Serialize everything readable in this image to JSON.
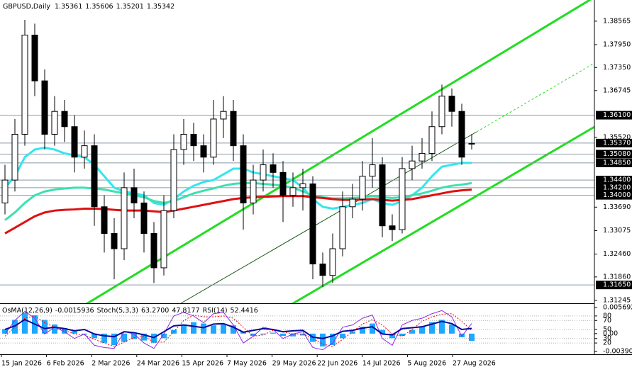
{
  "chart_data": [
    {
      "type": "candlestick",
      "symbol": "GBPUSD,Daily",
      "open": [
        1.338,
        1.344,
        1.356,
        1.382,
        1.37,
        1.356,
        1.362,
        1.358,
        1.35,
        1.353,
        1.337,
        1.33,
        1.326,
        1.342,
        1.338,
        1.33,
        1.321,
        1.336,
        1.352,
        1.356,
        1.353,
        1.35,
        1.36,
        1.362,
        1.353,
        1.338,
        1.344,
        1.348,
        1.346,
        1.34,
        1.342,
        1.343,
        1.322,
        1.319,
        1.326,
        1.337,
        1.339,
        1.345,
        1.348,
        1.332,
        1.331,
        1.347,
        1.349,
        1.351,
        1.358,
        1.366,
        1.362,
        1.35361
      ],
      "high": [
        1.348,
        1.36,
        1.386,
        1.385,
        1.373,
        1.366,
        1.365,
        1.361,
        1.357,
        1.356,
        1.34,
        1.334,
        1.346,
        1.347,
        1.341,
        1.333,
        1.34,
        1.356,
        1.36,
        1.359,
        1.356,
        1.365,
        1.366,
        1.365,
        1.356,
        1.348,
        1.352,
        1.351,
        1.349,
        1.346,
        1.347,
        1.345,
        1.325,
        1.33,
        1.341,
        1.343,
        1.349,
        1.355,
        1.35,
        1.335,
        1.35,
        1.353,
        1.355,
        1.362,
        1.369,
        1.368,
        1.364,
        1.35606
      ],
      "low": [
        1.335,
        1.341,
        1.353,
        1.366,
        1.352,
        1.353,
        1.354,
        1.346,
        1.347,
        1.332,
        1.325,
        1.318,
        1.323,
        1.334,
        1.325,
        1.317,
        1.319,
        1.334,
        1.348,
        1.349,
        1.346,
        1.348,
        1.355,
        1.349,
        1.331,
        1.335,
        1.341,
        1.342,
        1.333,
        1.337,
        1.336,
        1.318,
        1.316,
        1.317,
        1.324,
        1.334,
        1.336,
        1.342,
        1.329,
        1.328,
        1.33,
        1.344,
        1.347,
        1.349,
        1.356,
        1.358,
        1.348,
        1.35201
      ],
      "close": [
        1.344,
        1.356,
        1.382,
        1.37,
        1.356,
        1.362,
        1.358,
        1.35,
        1.353,
        1.337,
        1.33,
        1.326,
        1.342,
        1.338,
        1.33,
        1.321,
        1.336,
        1.352,
        1.356,
        1.353,
        1.35,
        1.36,
        1.362,
        1.353,
        1.338,
        1.344,
        1.348,
        1.346,
        1.34,
        1.342,
        1.343,
        1.322,
        1.319,
        1.326,
        1.337,
        1.339,
        1.345,
        1.348,
        1.332,
        1.331,
        1.347,
        1.349,
        1.351,
        1.358,
        1.366,
        1.362,
        1.35,
        1.35342
      ],
      "up_color": "#ffffff",
      "down_color": "#000000",
      "lines": [
        {
          "color": "#33e6ee",
          "values": [
            1.342,
            1.345,
            1.35,
            1.352,
            1.3525,
            1.352,
            1.351,
            1.3505,
            1.35,
            1.348,
            1.345,
            1.342,
            1.341,
            1.3405,
            1.34,
            1.338,
            1.3375,
            1.339,
            1.341,
            1.3425,
            1.3435,
            1.344,
            1.3455,
            1.347,
            1.347,
            1.346,
            1.3455,
            1.345,
            1.3445,
            1.344,
            1.342,
            1.339,
            1.337,
            1.3365,
            1.337,
            1.3375,
            1.338,
            1.339,
            1.338,
            1.3375,
            1.3385,
            1.34,
            1.342,
            1.345,
            1.3475,
            1.348,
            1.3485,
            1.3485
          ]
        },
        {
          "color": "#3ee0b0",
          "values": [
            1.3335,
            1.3355,
            1.338,
            1.34,
            1.341,
            1.3415,
            1.3418,
            1.342,
            1.342,
            1.3418,
            1.3415,
            1.341,
            1.3405,
            1.34,
            1.3395,
            1.3385,
            1.338,
            1.3385,
            1.3395,
            1.3405,
            1.3412,
            1.3418,
            1.3425,
            1.343,
            1.3432,
            1.3432,
            1.343,
            1.3428,
            1.3425,
            1.342,
            1.341,
            1.34,
            1.3395,
            1.3392,
            1.3392,
            1.3393,
            1.3395,
            1.3398,
            1.3395,
            1.3393,
            1.3395,
            1.34,
            1.3405,
            1.3412,
            1.342,
            1.3425,
            1.3428,
            1.3432
          ]
        },
        {
          "color": "#e01010",
          "values": [
            1.33,
            1.3315,
            1.333,
            1.3345,
            1.3355,
            1.336,
            1.3362,
            1.3363,
            1.3365,
            1.3365,
            1.3364,
            1.3362,
            1.336,
            1.336,
            1.336,
            1.3358,
            1.3356,
            1.336,
            1.3365,
            1.337,
            1.3375,
            1.338,
            1.3385,
            1.339,
            1.3393,
            1.3395,
            1.3396,
            1.3397,
            1.3398,
            1.3398,
            1.3398,
            1.3395,
            1.3393,
            1.339,
            1.3388,
            1.3388,
            1.3389,
            1.339,
            1.3388,
            1.3386,
            1.3388,
            1.339,
            1.3395,
            1.34,
            1.3405,
            1.341,
            1.3413,
            1.3415
          ]
        }
      ],
      "ylim": [
        1.3117,
        1.3912
      ],
      "yticks": [
        {
          "value": 1.38565,
          "label": "1.38565"
        },
        {
          "value": 1.3795,
          "label": "1.37950"
        },
        {
          "value": 1.3735,
          "label": "1.37350"
        },
        {
          "value": 1.36745,
          "label": "1.36745"
        },
        {
          "value": 1.3552,
          "label": "1.35520"
        },
        {
          "value": 1.3369,
          "label": "1.33690"
        },
        {
          "value": 1.33075,
          "label": "1.33075"
        },
        {
          "value": 1.3246,
          "label": "1.32460"
        },
        {
          "value": 1.3186,
          "label": "1.31860"
        },
        {
          "value": 1.31245,
          "label": "1.31245"
        }
      ],
      "levels": [
        {
          "value": 1.361,
          "label": "1.36100"
        },
        {
          "value": 1.3537,
          "label": "1.35370"
        },
        {
          "value": 1.3508,
          "label": "1.35080"
        },
        {
          "value": 1.3485,
          "label": "1.34850"
        },
        {
          "value": 1.344,
          "label": "1.34400"
        },
        {
          "value": 1.342,
          "label": "1.34200"
        },
        {
          "value": 1.34,
          "label": "1.34000"
        },
        {
          "value": 1.3165,
          "label": "1.31650"
        }
      ],
      "xtick_labels": [
        "15 Jan 2026",
        "6 Feb 2026",
        "2 Mar 2026",
        "24 Mar 2026",
        "15 Apr 2026",
        "7 May 2026",
        "29 May 2026",
        "22 Jun 2026",
        "14 Jul 2026",
        "5 Aug 2026",
        "27 Aug 2026"
      ]
    },
    {
      "type": "oscillator",
      "osma": {
        "name": "OsMA(12,26,9)",
        "color": "#1ea8ff",
        "values": [
          0.001,
          0.003,
          0.0045,
          0.004,
          0.003,
          0.002,
          0.0012,
          0.0005,
          -0.0002,
          -0.001,
          -0.002,
          -0.0025,
          -0.0018,
          -0.0012,
          -0.0015,
          -0.002,
          -0.001,
          0.0008,
          0.002,
          0.0025,
          0.0022,
          0.0018,
          0.002,
          0.0018,
          0.0005,
          -0.0005,
          -0.0002,
          0.0002,
          -0.0005,
          -0.0006,
          -0.0004,
          -0.0018,
          -0.0028,
          -0.0025,
          -0.001,
          0.0005,
          0.0015,
          0.0022,
          0.0008,
          -0.001,
          -0.0005,
          0.0008,
          0.0015,
          0.0025,
          0.003,
          0.002,
          -0.0008,
          -0.0015936
        ]
      },
      "stoch": {
        "name": "Stoch(5,3,3)",
        "main_color": "#8a2be2",
        "signal_color": "#ff0000",
        "main": [
          40,
          70,
          90,
          75,
          40,
          55,
          45,
          30,
          40,
          15,
          10,
          8,
          45,
          40,
          20,
          8,
          40,
          80,
          88,
          80,
          65,
          85,
          88,
          60,
          20,
          35,
          55,
          50,
          30,
          40,
          45,
          10,
          5,
          20,
          55,
          60,
          75,
          82,
          30,
          15,
          60,
          70,
          75,
          85,
          92,
          78,
          35,
          63.27
        ],
        "main_label": "63.2700",
        "signal": [
          35,
          55,
          75,
          80,
          65,
          55,
          48,
          40,
          38,
          28,
          20,
          12,
          22,
          32,
          35,
          22,
          22,
          45,
          70,
          82,
          78,
          78,
          80,
          75,
          55,
          35,
          38,
          48,
          45,
          40,
          40,
          30,
          18,
          12,
          28,
          45,
          62,
          72,
          60,
          40,
          35,
          50,
          68,
          78,
          84,
          85,
          68,
          47.8177
        ]
      },
      "rsi": {
        "name": "RSI(14)",
        "color": "#0a0a9a",
        "values": [
          50,
          58,
          72,
          62,
          52,
          55,
          52,
          47,
          50,
          40,
          36,
          34,
          45,
          43,
          38,
          32,
          45,
          58,
          60,
          57,
          54,
          62,
          63,
          55,
          44,
          48,
          52,
          50,
          45,
          47,
          48,
          33,
          30,
          36,
          46,
          48,
          53,
          56,
          40,
          38,
          52,
          54,
          56,
          62,
          68,
          63,
          50,
          52.4416
        ]
      },
      "ylim": [
        -0.0045,
        0.0063
      ],
      "yticks": [
        0.005692,
        {
          "value": 0,
          "label": "0.00"
        },
        -0.003907
      ],
      "y2lim": [
        -5,
        105
      ],
      "y2ticks": [
        80,
        70,
        50,
        30,
        20
      ]
    }
  ]
}
